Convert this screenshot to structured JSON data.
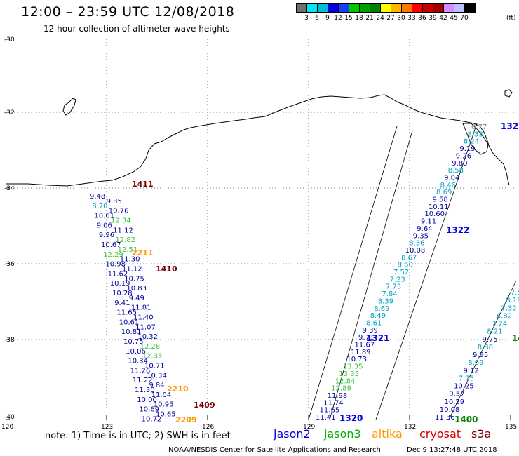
{
  "header": {
    "title": "12:00 – 23:59 UTC 12/08/2018",
    "subtitle": "12 hour collection of altimeter wave heights"
  },
  "color_scale": {
    "unit": "(ft)",
    "labels": [
      "3",
      "6",
      "9",
      "12",
      "15",
      "18",
      "21",
      "24",
      "27",
      "30",
      "33",
      "36",
      "39",
      "42",
      "45",
      "70"
    ],
    "colors": [
      "#707070",
      "#00e8f0",
      "#00bcd6",
      "#0000e0",
      "#1a3cff",
      "#00c800",
      "#00a000",
      "#008000",
      "#ffff00",
      "#ffb400",
      "#ff7800",
      "#ff0000",
      "#c80000",
      "#a00000",
      "#d090ff",
      "#c0c0ff",
      "#000000"
    ]
  },
  "axes": {
    "lat_labels": [
      "-30",
      "-32",
      "-34",
      "-36",
      "-38",
      "-40"
    ],
    "lon_labels": [
      "120",
      "123",
      "126",
      "129",
      "132",
      "135"
    ]
  },
  "tracks": {
    "left": {
      "time_labels": [
        {
          "text": "1411",
          "color": "#7a0000"
        },
        {
          "text": "2211",
          "color": "#ff9900"
        },
        {
          "text": "1410",
          "color": "#7a0000"
        },
        {
          "text": "2210",
          "color": "#ff9900"
        },
        {
          "text": "1409",
          "color": "#7a0000"
        },
        {
          "text": "2209",
          "color": "#ff9900"
        }
      ],
      "values": [
        {
          "v": "9.48",
          "c": "#0000a0"
        },
        {
          "v": "9.35",
          "c": "#0000a0"
        },
        {
          "v": "8.70",
          "c": "#00a0c8"
        },
        {
          "v": "10.76",
          "c": "#0000a0"
        },
        {
          "v": "10.61",
          "c": "#0000a0"
        },
        {
          "v": "12.34",
          "c": "#40c040"
        },
        {
          "v": "9.06",
          "c": "#0000a0"
        },
        {
          "v": "11.12",
          "c": "#0000a0"
        },
        {
          "v": "9.96",
          "c": "#0000a0"
        },
        {
          "v": "12.82",
          "c": "#40c040"
        },
        {
          "v": "10.67",
          "c": "#0000a0"
        },
        {
          "v": "12.51",
          "c": "#40c040"
        },
        {
          "v": "12.29",
          "c": "#40c040"
        },
        {
          "v": "11.30",
          "c": "#0000a0"
        },
        {
          "v": "10.98",
          "c": "#0000a0"
        },
        {
          "v": "11.12",
          "c": "#0000a0"
        },
        {
          "v": "11.62",
          "c": "#0000a0"
        },
        {
          "v": "10.75",
          "c": "#0000a0"
        },
        {
          "v": "10.19",
          "c": "#0000a0"
        },
        {
          "v": "10.83",
          "c": "#0000a0"
        },
        {
          "v": "10.28",
          "c": "#0000a0"
        },
        {
          "v": "9.49",
          "c": "#0000a0"
        },
        {
          "v": "9.41",
          "c": "#0000a0"
        },
        {
          "v": "11.81",
          "c": "#0000a0"
        },
        {
          "v": "11.65",
          "c": "#0000a0"
        },
        {
          "v": "11.40",
          "c": "#0000a0"
        },
        {
          "v": "10.61",
          "c": "#0000a0"
        },
        {
          "v": "11.07",
          "c": "#0000a0"
        },
        {
          "v": "10.81",
          "c": "#0000a0"
        },
        {
          "v": "10.32",
          "c": "#0000a0"
        },
        {
          "v": "10.75",
          "c": "#0000a0"
        },
        {
          "v": "12.28",
          "c": "#40c040"
        },
        {
          "v": "10.06",
          "c": "#0000a0"
        },
        {
          "v": "12.35",
          "c": "#40c040"
        },
        {
          "v": "10.34",
          "c": "#0000a0"
        },
        {
          "v": "10.71",
          "c": "#0000a0"
        },
        {
          "v": "11.26",
          "c": "#0000a0"
        },
        {
          "v": "10.34",
          "c": "#0000a0"
        },
        {
          "v": "11.22",
          "c": "#0000a0"
        },
        {
          "v": "9.84",
          "c": "#0000a0"
        },
        {
          "v": "11.30",
          "c": "#0000a0"
        },
        {
          "v": "11.04",
          "c": "#0000a0"
        },
        {
          "v": "10.00",
          "c": "#0000a0"
        },
        {
          "v": "10.95",
          "c": "#0000a0"
        },
        {
          "v": "10.69",
          "c": "#0000a0"
        },
        {
          "v": "10.65",
          "c": "#0000a0"
        },
        {
          "v": "10.72",
          "c": "#0000a0"
        }
      ]
    },
    "middle": {
      "time_labels": [
        {
          "text": "1322",
          "color": "#0000e0"
        },
        {
          "text": "1321",
          "color": "#0000e0"
        },
        {
          "text": "1320",
          "color": "#0000e0"
        }
      ],
      "values": [
        {
          "v": "0.77",
          "c": "#808080"
        },
        {
          "v": "8.33",
          "c": "#00a0c8"
        },
        {
          "v": "8.24",
          "c": "#00a0c8"
        },
        {
          "v": "9.19",
          "c": "#0000a0"
        },
        {
          "v": "9.26",
          "c": "#0000a0"
        },
        {
          "v": "9.80",
          "c": "#0000a0"
        },
        {
          "v": "8.58",
          "c": "#00a0c8"
        },
        {
          "v": "9.04",
          "c": "#0000a0"
        },
        {
          "v": "8.46",
          "c": "#00a0c8"
        },
        {
          "v": "8.69",
          "c": "#00a0c8"
        },
        {
          "v": "9.58",
          "c": "#0000a0"
        },
        {
          "v": "10.11",
          "c": "#0000a0"
        },
        {
          "v": "10.60",
          "c": "#0000a0"
        },
        {
          "v": "9.11",
          "c": "#0000a0"
        },
        {
          "v": "9.64",
          "c": "#0000a0"
        },
        {
          "v": "9.35",
          "c": "#0000a0"
        },
        {
          "v": "8.36",
          "c": "#00a0c8"
        },
        {
          "v": "10.08",
          "c": "#0000a0"
        },
        {
          "v": "8.67",
          "c": "#00a0c8"
        },
        {
          "v": "8.50",
          "c": "#00a0c8"
        },
        {
          "v": "7.52",
          "c": "#00a0c8"
        },
        {
          "v": "7.23",
          "c": "#00a0c8"
        },
        {
          "v": "7.73",
          "c": "#00a0c8"
        },
        {
          "v": "7.84",
          "c": "#00a0c8"
        },
        {
          "v": "8.39",
          "c": "#00a0c8"
        },
        {
          "v": "8.69",
          "c": "#00a0c8"
        },
        {
          "v": "8.49",
          "c": "#00a0c8"
        },
        {
          "v": "8.61",
          "c": "#00a0c8"
        },
        {
          "v": "9.39",
          "c": "#0000a0"
        },
        {
          "v": "9.71",
          "c": "#0000a0"
        },
        {
          "v": "11.67",
          "c": "#0000a0"
        },
        {
          "v": "11.89",
          "c": "#0000a0"
        },
        {
          "v": "10.73",
          "c": "#0000a0"
        },
        {
          "v": "13.35",
          "c": "#40c040"
        },
        {
          "v": "13.33",
          "c": "#40c040"
        },
        {
          "v": "12.84",
          "c": "#40c040"
        },
        {
          "v": "12.89",
          "c": "#40c040"
        },
        {
          "v": "11.98",
          "c": "#0000a0"
        },
        {
          "v": "11.74",
          "c": "#0000a0"
        },
        {
          "v": "11.65",
          "c": "#0000a0"
        },
        {
          "v": "11.41",
          "c": "#0000a0"
        }
      ]
    },
    "right": {
      "time_labels": [
        {
          "text": "132",
          "color": "#0000e0"
        },
        {
          "text": "1400",
          "color": "#008000"
        },
        {
          "text": "14",
          "color": "#008000"
        }
      ],
      "values": [
        {
          "v": "7.5",
          "c": "#00a0c8"
        },
        {
          "v": "8.16",
          "c": "#00a0c8"
        },
        {
          "v": "7.32",
          "c": "#00a0c8"
        },
        {
          "v": "6.82",
          "c": "#00a0c8"
        },
        {
          "v": "7.24",
          "c": "#00a0c8"
        },
        {
          "v": "8.21",
          "c": "#00a0c8"
        },
        {
          "v": "9.75",
          "c": "#0000a0"
        },
        {
          "v": "8.88",
          "c": "#00a0c8"
        },
        {
          "v": "9.95",
          "c": "#0000a0"
        },
        {
          "v": "8.69",
          "c": "#00a0c8"
        },
        {
          "v": "9.12",
          "c": "#0000a0"
        },
        {
          "v": "7.75",
          "c": "#00a0c8"
        },
        {
          "v": "10.25",
          "c": "#0000a0"
        },
        {
          "v": "9.57",
          "c": "#0000a0"
        },
        {
          "v": "10.29",
          "c": "#0000a0"
        },
        {
          "v": "10.08",
          "c": "#0000a0"
        },
        {
          "v": "11.36",
          "c": "#0000a0"
        }
      ]
    }
  },
  "footer": {
    "note": "note:  1) Time is in UTC;  2) SWH is in feet",
    "satellites": [
      {
        "name": "jason2",
        "color": "#0000e0"
      },
      {
        "name": "jason3",
        "color": "#00b000"
      },
      {
        "name": "altika",
        "color": "#ff9900"
      },
      {
        "name": "cryosat",
        "color": "#d00000"
      },
      {
        "name": "s3a",
        "color": "#7a0000"
      }
    ],
    "credit": "NOAA/NESDIS Center for Satellite Applications and Research",
    "date": "Dec  9 13:27:48 UTC 2018"
  }
}
